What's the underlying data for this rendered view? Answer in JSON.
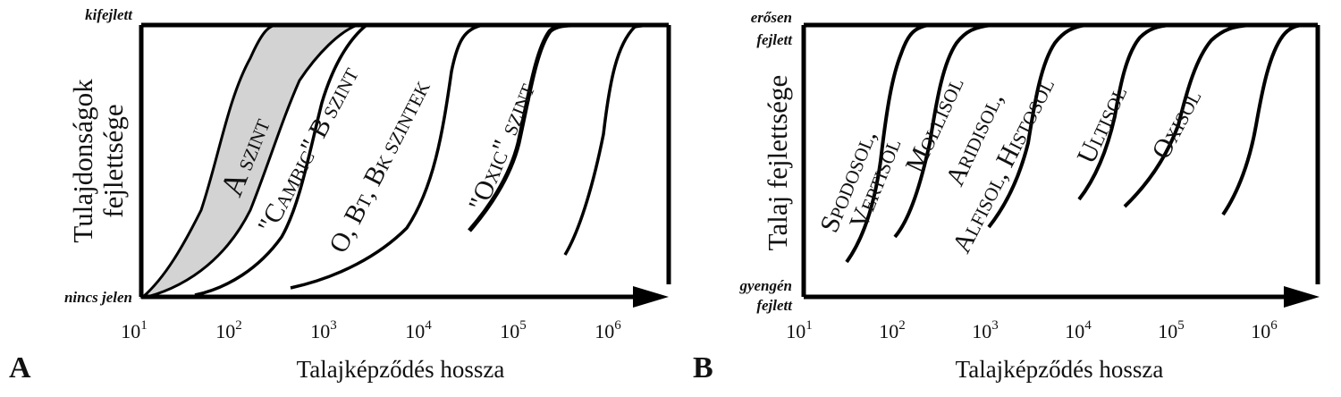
{
  "panels": {
    "a": {
      "letter": "A",
      "xlabel": "Talajképződés hossza",
      "ylabel_line1": "Tulajdonságok",
      "ylabel_line2": "fejlettsége",
      "y_top": "kifejlett",
      "y_bottom": "nincs jelen",
      "curve_labels": {
        "a_szint": {
          "big": "A",
          "small": "SZINT"
        },
        "cambic": {
          "p1": "\"C",
          "p2": "AMBIC",
          "p3": "\" B",
          "p4": " SZINT"
        },
        "bt": {
          "p1": "O, B",
          "p2": "T",
          "p3": ", B",
          "p4": "K",
          "p5": " SZINTEK"
        },
        "oxic": {
          "p1": "\"O",
          "p2": "XIC",
          "p3": "\"",
          "p4": " SZINT"
        }
      }
    },
    "b": {
      "letter": "B",
      "xlabel": "Talajképződés hossza",
      "ylabel": "Talaj fejlettsége",
      "y_top_line1": "erősen",
      "y_top_line2": "fejlett",
      "y_bottom_line1": "gyengén",
      "y_bottom_line2": "fejlett",
      "curve_labels": {
        "spodosol": {
          "l1a": "S",
          "l1b": "PODOSOL",
          "l1c": ",",
          "l2a": "V",
          "l2b": "ERTISOL"
        },
        "mollisol": {
          "a": "M",
          "b": "OLLISOL"
        },
        "aridisol": {
          "l1a": "A",
          "l1b": "RIDISOL",
          "l1c": ",",
          "l2a": "A",
          "l2b": "LFISOL",
          "l2c": ", H",
          "l2d": "ISTOSOL"
        },
        "ultisol": {
          "a": "U",
          "b": "LTISOL"
        },
        "oxisol": {
          "a": "O",
          "b": "XISOL"
        }
      }
    }
  },
  "chart_data": [
    {
      "type": "line",
      "x_scale": "log",
      "x_ticks": [
        "10",
        "10",
        "10",
        "10",
        "10",
        "10"
      ],
      "x_exponents": [
        "1",
        "2",
        "3",
        "4",
        "5",
        "6"
      ],
      "fill_color": "#d3d3d3",
      "series": []
    },
    {
      "type": "line",
      "x_scale": "log",
      "x_ticks": [
        "10",
        "10",
        "10",
        "10",
        "10",
        "10"
      ],
      "x_exponents": [
        "1",
        "2",
        "3",
        "4",
        "5",
        "6"
      ],
      "series": []
    }
  ]
}
